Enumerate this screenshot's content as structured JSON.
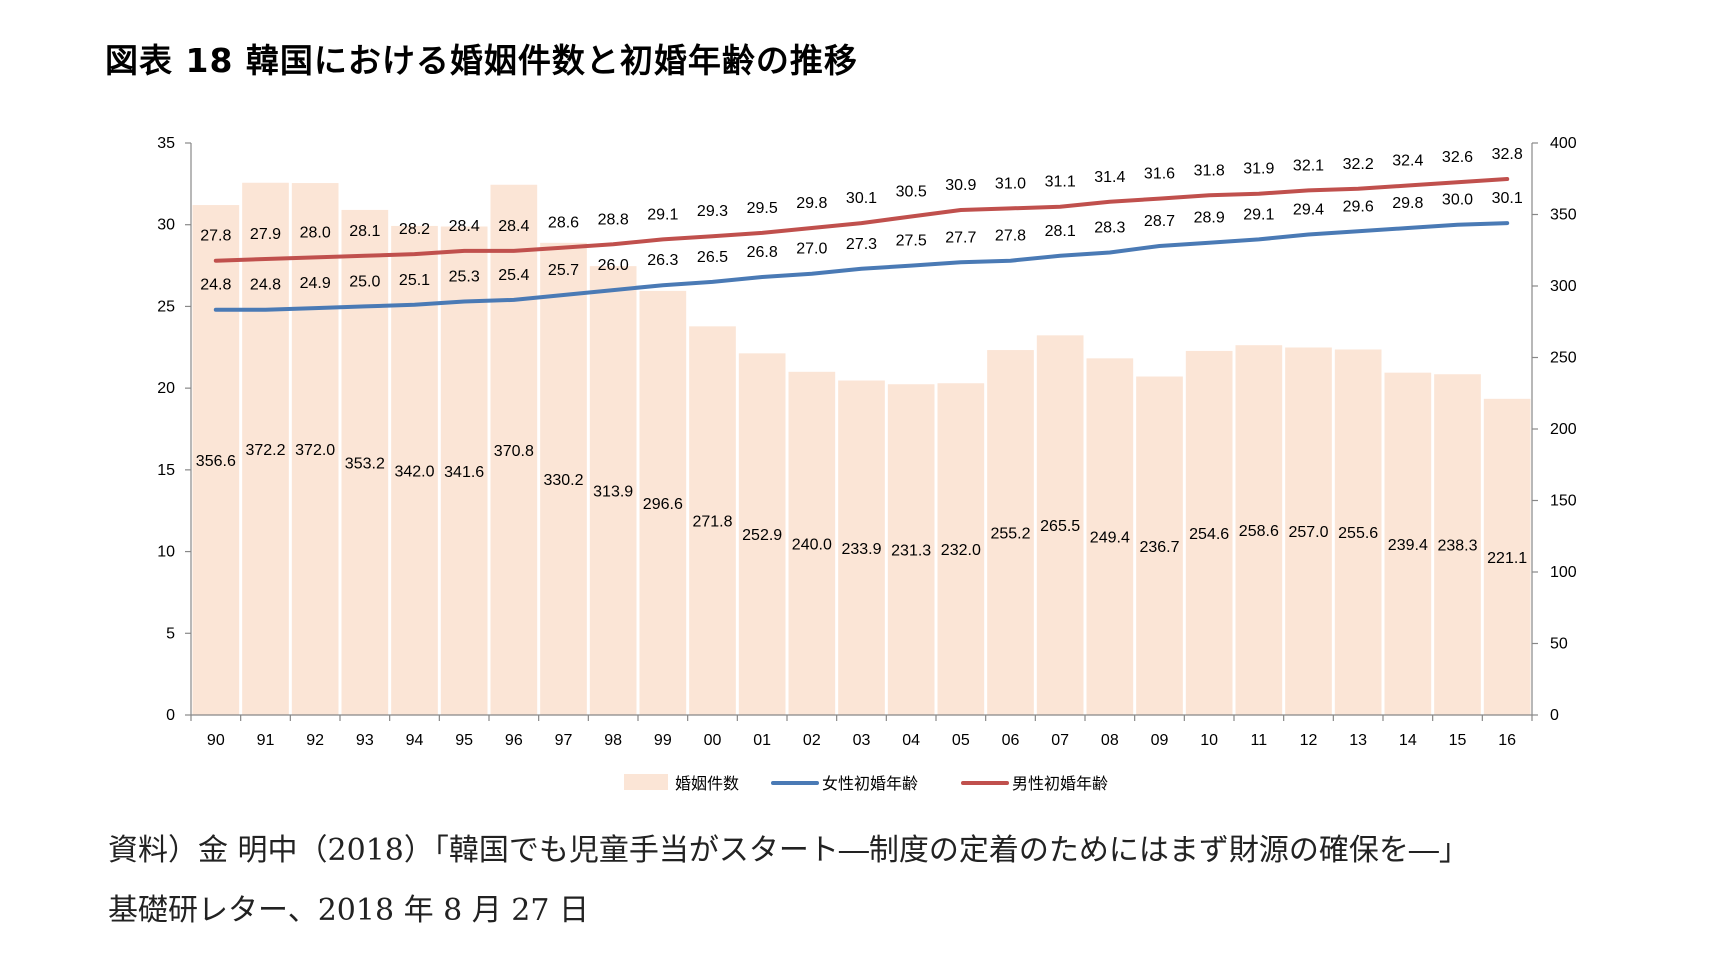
{
  "title": "図表 18 韓国における婚姻件数と初婚年齢の推移",
  "source": {
    "line1": "資料）金 明中（2018）「韓国でも児童手当がスタート―制度の定着のためにはまず財源の確保を―」",
    "line2": "基礎研レター、2018 年 8 月 27 日"
  },
  "chart_data": {
    "type": "bar+line",
    "categories": [
      "90",
      "91",
      "92",
      "93",
      "94",
      "95",
      "96",
      "97",
      "98",
      "99",
      "00",
      "01",
      "02",
      "03",
      "04",
      "05",
      "06",
      "07",
      "08",
      "09",
      "10",
      "11",
      "12",
      "13",
      "14",
      "15",
      "16"
    ],
    "bar_series": {
      "name": "婚姻件数",
      "axis": "right",
      "color": "#fbe5d6",
      "values": [
        356.6,
        372.2,
        372.0,
        353.2,
        342.0,
        341.6,
        370.8,
        330.2,
        313.9,
        296.6,
        271.8,
        252.9,
        240.0,
        233.9,
        231.3,
        232.0,
        255.2,
        265.5,
        249.4,
        236.7,
        254.6,
        258.6,
        257.0,
        255.6,
        239.4,
        238.3,
        221.1
      ],
      "labels": [
        "356.6",
        "372.2",
        "372.0",
        "353.2",
        "342.0",
        "341.6",
        "370.8",
        "330.2",
        "313.9",
        "296.6",
        "271.8",
        "252.9",
        "240.0",
        "233.9",
        "231.3",
        "232.0",
        "255.2",
        "265.5",
        "249.4",
        "236.7",
        "254.6",
        "258.6",
        "257.0",
        "255.6",
        "239.4",
        "238.3",
        "221.1"
      ]
    },
    "line_series": [
      {
        "name": "女性初婚年齢",
        "axis": "left",
        "color": "#4a7ab5",
        "values": [
          24.8,
          24.8,
          24.9,
          25.0,
          25.1,
          25.3,
          25.4,
          25.7,
          26.0,
          26.3,
          26.5,
          26.8,
          27.0,
          27.3,
          27.5,
          27.7,
          27.8,
          28.1,
          28.3,
          28.7,
          28.9,
          29.1,
          29.4,
          29.6,
          29.8,
          30.0,
          30.1
        ],
        "labels": [
          "24.8",
          "24.8",
          "24.9",
          "25.0",
          "25.1",
          "25.3",
          "25.4",
          "25.7",
          "26.0",
          "26.3",
          "26.5",
          "26.8",
          "27.0",
          "27.3",
          "27.5",
          "27.7",
          "27.8",
          "28.1",
          "28.3",
          "28.7",
          "28.9",
          "29.1",
          "29.4",
          "29.6",
          "29.8",
          "30.0",
          "30.1"
        ]
      },
      {
        "name": "男性初婚年齢",
        "axis": "left",
        "color": "#c0504d",
        "values": [
          27.8,
          27.9,
          28.0,
          28.1,
          28.2,
          28.4,
          28.4,
          28.6,
          28.8,
          29.1,
          29.3,
          29.5,
          29.8,
          30.1,
          30.5,
          30.9,
          31.0,
          31.1,
          31.4,
          31.6,
          31.8,
          31.9,
          32.1,
          32.2,
          32.4,
          32.6,
          32.8
        ],
        "labels": [
          "27.8",
          "27.9",
          "28.0",
          "28.1",
          "28.2",
          "28.4",
          "28.4",
          "28.6",
          "28.8",
          "29.1",
          "29.3",
          "29.5",
          "29.8",
          "30.1",
          "30.5",
          "30.9",
          "31.0",
          "31.1",
          "31.4",
          "31.6",
          "31.8",
          "31.9",
          "32.1",
          "32.2",
          "32.4",
          "32.6",
          "32.8"
        ]
      }
    ],
    "left_axis": {
      "min": 0,
      "max": 35,
      "ticks": [
        "0",
        "5",
        "10",
        "15",
        "20",
        "25",
        "30",
        "35"
      ]
    },
    "right_axis": {
      "min": 0,
      "max": 400,
      "ticks": [
        "0",
        "50",
        "100",
        "150",
        "200",
        "250",
        "300",
        "350",
        "400"
      ]
    },
    "legend": [
      "婚姻件数",
      "女性初婚年齢",
      "男性初婚年齢"
    ],
    "legend_position": "bottom",
    "grid": false
  }
}
